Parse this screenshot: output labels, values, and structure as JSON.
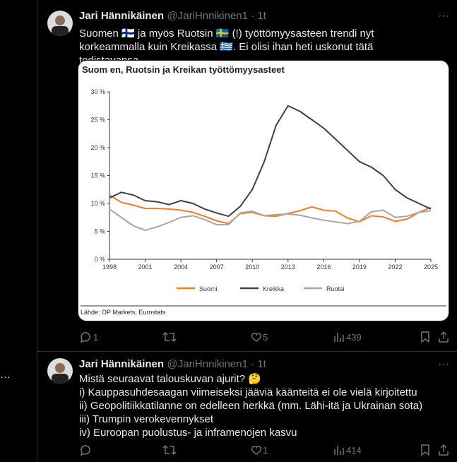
{
  "side": {
    "more": "…"
  },
  "tweets": [
    {
      "name": "Jari Hännikäinen",
      "handle": "@JariHnnikinen1 · 1t",
      "text": "Suomen 🇫🇮 ja myös Ruotsin 🇸🇪 (!) työttömyysasteen trendi nyt korkeammalla kuin Kreikassa 🇬🇷. Ei olisi ihan heti uskonut tätä todistavansa…",
      "replies": "1",
      "likes": "5",
      "views": "439"
    },
    {
      "name": "Jari Hännikäinen",
      "handle": "@JariHnnikinen1 · 1t",
      "lines": [
        "Mistä seuraavat talouskuvan ajurit? 🤔",
        "i) Kauppasuhdesaagan viimeiseksi jääviä käänteitä ei ole vielä kirjoitettu",
        "ii) Geopolitiikkatilanne on edelleen herkkä (mm. Lähi-itä ja Ukrainan sota)",
        "iii) Trumpin verokevennykset",
        "iv) Euroopan puolustus- ja inframenojen kasvu"
      ],
      "likes": "1",
      "views": "414"
    }
  ],
  "chart_data": {
    "type": "line",
    "title": "Suom en, Ruotsin ja Kreikan työttömyysasteet",
    "source": "Lähde: OP Markets, Eurostats",
    "x": [
      1998,
      1999,
      2000,
      2001,
      2002,
      2003,
      2004,
      2005,
      2006,
      2007,
      2008,
      2009,
      2010,
      2011,
      2012,
      2013,
      2014,
      2015,
      2016,
      2017,
      2018,
      2019,
      2020,
      2021,
      2022,
      2023,
      2024,
      2025
    ],
    "series": [
      {
        "name": "Suomi",
        "color": "#f47b20",
        "values": [
          11.5,
          10.2,
          9.7,
          9.1,
          9.1,
          9.0,
          8.8,
          8.4,
          7.7,
          6.9,
          6.4,
          8.2,
          8.4,
          7.8,
          7.7,
          8.2,
          8.7,
          9.4,
          8.8,
          8.6,
          7.4,
          6.7,
          7.8,
          7.6,
          6.8,
          7.2,
          8.4,
          9.3
        ]
      },
      {
        "name": "Kreikka",
        "color": "#404040",
        "values": [
          11,
          12,
          11.5,
          10.5,
          10.3,
          9.8,
          10.5,
          10,
          9,
          8.3,
          7.7,
          9.5,
          12.5,
          17.5,
          24,
          27.5,
          26.5,
          25,
          23.5,
          21.5,
          19.5,
          17.5,
          16.5,
          15,
          12.5,
          11,
          10,
          9
        ]
      },
      {
        "name": "Ruotsi",
        "color": "#a6a6a6",
        "values": [
          9,
          7.5,
          6,
          5.2,
          5.8,
          6.6,
          7.5,
          7.8,
          7.1,
          6.2,
          6.2,
          8.3,
          8.6,
          7.8,
          8,
          8.1,
          7.9,
          7.4,
          7,
          6.7,
          6.4,
          6.8,
          8.5,
          8.8,
          7.5,
          7.7,
          8.4,
          8.7
        ]
      }
    ],
    "xlim": [
      1998,
      2025
    ],
    "xticks": [
      1998,
      2001,
      2004,
      2007,
      2010,
      2013,
      2016,
      2019,
      2022,
      2025
    ],
    "ylim": [
      0,
      30
    ],
    "yticks": [
      {
        "value": 0,
        "label": "0 %"
      },
      {
        "value": 5,
        "label": "5 %"
      },
      {
        "value": 10,
        "label": "10 %"
      },
      {
        "value": 15,
        "label": "15 %"
      },
      {
        "value": 20,
        "label": "20 %"
      },
      {
        "value": 25,
        "label": "25 %"
      },
      {
        "value": 30,
        "label": "30 %"
      }
    ]
  }
}
